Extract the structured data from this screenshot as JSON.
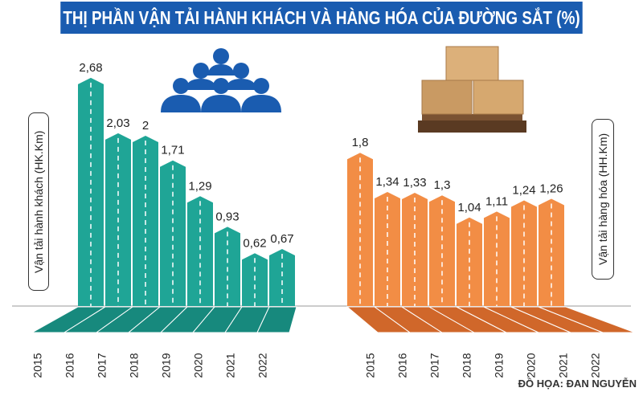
{
  "title": "THỊ PHẦN VẬN TẢI HÀNH KHÁCH VÀ HÀNG HÓA CỦA ĐƯỜNG SẮT (%)",
  "credit": "ĐỒ HỌA: ĐAN NGUYỄN",
  "chart_data": [
    {
      "type": "bar",
      "ylabel": "Vận tải hành khách (HK.Km)",
      "categories": [
        "2015",
        "2016",
        "2017",
        "2018",
        "2019",
        "2020",
        "2021",
        "2022"
      ],
      "values": [
        2.68,
        2.03,
        2,
        1.71,
        1.29,
        0.93,
        0.62,
        0.67
      ],
      "labels": [
        "2,68",
        "2,03",
        "2",
        "1,71",
        "1,29",
        "0,93",
        "0,62",
        "0,67"
      ],
      "color": "#1fa596",
      "floor_color": "#17897d",
      "icon": "people-group-icon"
    },
    {
      "type": "bar",
      "ylabel": "Vận tải hàng hóa (HH.Km)",
      "categories": [
        "2015",
        "2016",
        "2017",
        "2018",
        "2019",
        "2020",
        "2021",
        "2022"
      ],
      "values": [
        1.8,
        1.34,
        1.33,
        1.3,
        1.04,
        1.11,
        1.24,
        1.26
      ],
      "labels": [
        "1,8",
        "1,34",
        "1,33",
        "1,3",
        "1,04",
        "1,11",
        "1,24",
        "1,26"
      ],
      "color": "#f28d45",
      "floor_color": "#d0672a",
      "icon": "cardboard-boxes-pallet-icon"
    }
  ]
}
